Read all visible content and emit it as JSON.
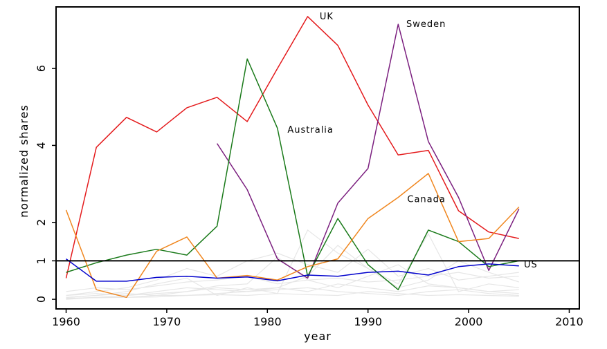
{
  "chart_data": {
    "type": "line",
    "xlabel": "year",
    "ylabel": "normalized shares",
    "xlim": [
      1959,
      2011
    ],
    "ylim": [
      -0.25,
      7.6
    ],
    "x_ticks": [
      1960,
      1970,
      1980,
      1990,
      2000,
      2010
    ],
    "y_ticks": [
      0,
      1,
      2,
      4,
      6
    ],
    "reference_line": {
      "y": 1,
      "color": "#000000"
    },
    "grid": false,
    "series": [
      {
        "name": "UK",
        "color": "#e41a1c",
        "x": [
          1960,
          1963,
          1966,
          1969,
          1972,
          1975,
          1978,
          1981,
          1984,
          1987,
          1990,
          1993,
          1996,
          1999,
          2002,
          2005
        ],
        "y": [
          0.55,
          3.95,
          4.73,
          4.35,
          4.98,
          5.25,
          4.62,
          6.0,
          7.35,
          6.6,
          5.05,
          3.75,
          3.87,
          2.3,
          1.75,
          1.58
        ]
      },
      {
        "name": "Sweden",
        "color": "#7b1f7f",
        "x": [
          1975,
          1978,
          1981,
          1984,
          1987,
          1990,
          1993,
          1996,
          1999,
          2002,
          2005
        ],
        "y": [
          4.05,
          2.85,
          1.05,
          0.55,
          2.5,
          3.4,
          7.15,
          4.1,
          2.65,
          0.75,
          2.35
        ]
      },
      {
        "name": "Australia",
        "color": "#1a7a1a",
        "x": [
          1960,
          1963,
          1966,
          1969,
          1972,
          1975,
          1978,
          1981,
          1984,
          1987,
          1990,
          1993,
          1996,
          1999,
          2002,
          2005
        ],
        "y": [
          0.7,
          0.95,
          1.15,
          1.3,
          1.15,
          1.9,
          6.25,
          4.45,
          0.6,
          2.1,
          0.9,
          0.25,
          1.8,
          1.5,
          0.85,
          1.0
        ]
      },
      {
        "name": "Canada",
        "color": "#f0861e",
        "x": [
          1960,
          1963,
          1966,
          1969,
          1972,
          1975,
          1978,
          1981,
          1984,
          1987,
          1990,
          1993,
          1996,
          1999,
          2002,
          2005
        ],
        "y": [
          2.32,
          0.25,
          0.05,
          1.25,
          1.62,
          0.55,
          0.62,
          0.5,
          0.85,
          1.05,
          2.1,
          2.65,
          3.27,
          1.5,
          1.58,
          2.4
        ]
      },
      {
        "name": "US",
        "color": "#0000cc",
        "x": [
          1960,
          1963,
          1966,
          1969,
          1972,
          1975,
          1978,
          1981,
          1984,
          1987,
          1990,
          1993,
          1996,
          1999,
          2002,
          2005
        ],
        "y": [
          1.05,
          0.47,
          0.47,
          0.57,
          0.6,
          0.55,
          0.58,
          0.48,
          0.63,
          0.6,
          0.7,
          0.73,
          0.63,
          0.85,
          0.92,
          0.87
        ]
      }
    ],
    "background_series": {
      "color": "#e6e6e6",
      "x": [
        1960,
        1963,
        1966,
        1969,
        1972,
        1975,
        1978,
        1981,
        1984,
        1987,
        1990,
        1993,
        1996,
        1999,
        2002,
        2005
      ],
      "lines": [
        [
          0.05,
          0.1,
          0.2,
          0.4,
          0.55,
          0.1,
          0.3,
          0.15,
          1.8,
          1.2,
          0.8,
          0.4,
          1.7,
          0.2,
          0.4,
          0.3
        ],
        [
          0.02,
          0.05,
          0.1,
          0.15,
          0.2,
          0.3,
          0.25,
          0.3,
          0.2,
          0.4,
          0.3,
          0.2,
          0.35,
          0.3,
          0.2,
          0.25
        ],
        [
          0.1,
          0.2,
          0.3,
          0.5,
          0.8,
          0.6,
          1.0,
          1.2,
          0.9,
          0.7,
          1.3,
          0.6,
          0.8,
          0.5,
          0.6,
          0.7
        ],
        [
          0.0,
          0.05,
          0.05,
          0.1,
          0.1,
          0.15,
          0.2,
          0.25,
          0.3,
          0.2,
          0.15,
          0.1,
          0.2,
          0.25,
          0.15,
          0.1
        ],
        [
          0.2,
          0.3,
          0.25,
          0.35,
          0.45,
          0.5,
          0.6,
          0.4,
          0.5,
          0.55,
          0.45,
          0.5,
          0.6,
          0.7,
          0.55,
          0.6
        ],
        [
          0.05,
          0.1,
          0.15,
          0.1,
          0.2,
          0.35,
          0.4,
          1.1,
          0.5,
          0.3,
          0.6,
          0.9,
          0.4,
          0.3,
          0.2,
          0.15
        ],
        [
          0.1,
          0.15,
          0.1,
          0.2,
          0.3,
          0.25,
          0.2,
          0.3,
          0.6,
          1.4,
          0.8,
          0.3,
          0.5,
          1.0,
          0.7,
          0.45
        ],
        [
          0.03,
          0.04,
          0.05,
          0.06,
          0.1,
          0.12,
          0.1,
          0.15,
          0.12,
          0.1,
          0.2,
          0.15,
          0.1,
          0.12,
          0.1,
          0.08
        ]
      ]
    }
  }
}
